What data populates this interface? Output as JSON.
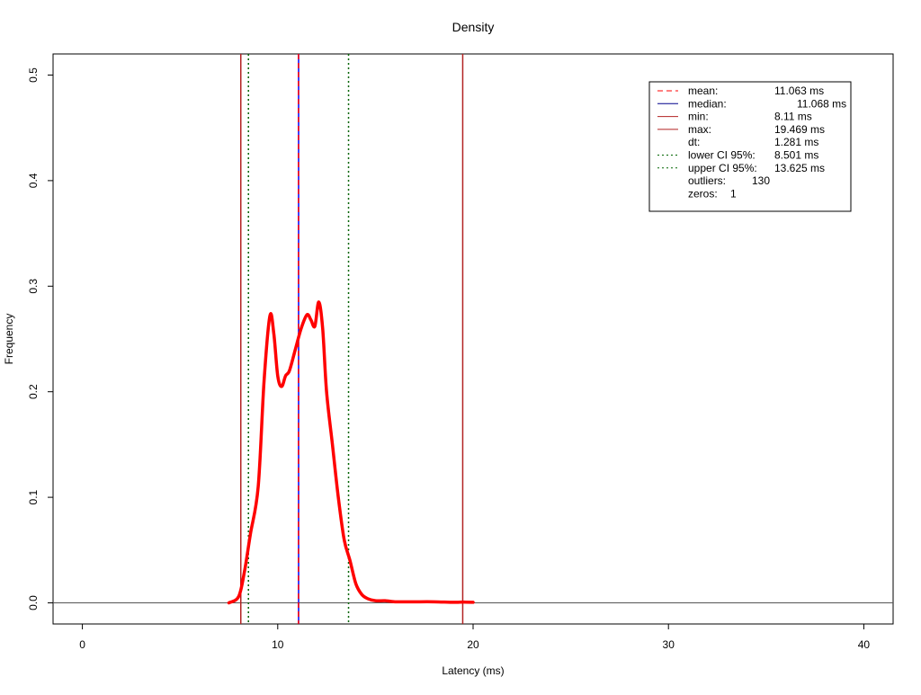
{
  "chart_data": {
    "type": "line",
    "title": "Density",
    "xlabel": "Latency (ms)",
    "ylabel": "Frequency",
    "xlim": [
      -1.5,
      41.5
    ],
    "ylim": [
      -0.02,
      0.52
    ],
    "x_ticks": [
      0,
      10,
      20,
      30,
      40
    ],
    "x_tick_labels": [
      "0",
      "10",
      "20",
      "30",
      "40"
    ],
    "y_ticks": [
      0.0,
      0.1,
      0.2,
      0.3,
      0.4,
      0.5
    ],
    "y_tick_labels": [
      "0.0",
      "0.1",
      "0.2",
      "0.3",
      "0.4",
      "0.5"
    ],
    "baseline_y": 0,
    "grid": false,
    "legend_position": "top-right",
    "density_curve": {
      "color": "#ff0000",
      "x": [
        7.5,
        8.0,
        8.3,
        8.6,
        9.0,
        9.3,
        9.6,
        9.8,
        10.0,
        10.2,
        10.4,
        10.6,
        10.9,
        11.2,
        11.5,
        11.7,
        11.9,
        12.1,
        12.3,
        12.5,
        12.8,
        13.1,
        13.4,
        13.7,
        14.0,
        14.3,
        14.6,
        15.0,
        15.5,
        16.0,
        16.5,
        17.0,
        18.0,
        19.0,
        19.5,
        20.0
      ],
      "y": [
        0.0,
        0.006,
        0.03,
        0.065,
        0.11,
        0.21,
        0.272,
        0.255,
        0.215,
        0.205,
        0.215,
        0.22,
        0.24,
        0.26,
        0.273,
        0.268,
        0.262,
        0.285,
        0.26,
        0.2,
        0.15,
        0.1,
        0.06,
        0.04,
        0.018,
        0.008,
        0.004,
        0.002,
        0.002,
        0.001,
        0.001,
        0.001,
        0.001,
        0.0005,
        0.0008,
        0.0005
      ]
    },
    "vertical_lines": [
      {
        "key": "min",
        "x": 8.11,
        "color": "#b22222",
        "style": "solid"
      },
      {
        "key": "lower_ci",
        "x": 8.501,
        "color": "#006400",
        "style": "dotted"
      },
      {
        "key": "median",
        "x": 11.068,
        "color": "#0000ff",
        "style": "solid"
      },
      {
        "key": "mean",
        "x": 11.063,
        "color": "#ff0000",
        "style": "dashed"
      },
      {
        "key": "upper_ci",
        "x": 13.625,
        "color": "#006400",
        "style": "dotted"
      },
      {
        "key": "max",
        "x": 19.469,
        "color": "#b22222",
        "style": "solid"
      }
    ],
    "legend": [
      {
        "label": "mean:",
        "value": "11.063 ms",
        "color": "#ff0000",
        "style": "dashed"
      },
      {
        "label": "median:",
        "value": "11.068 ms",
        "color": "#00008b",
        "style": "solid"
      },
      {
        "label": "min:",
        "value": "8.11 ms",
        "color": "#b22222",
        "style": "solid"
      },
      {
        "label": "max:",
        "value": "19.469 ms",
        "color": "#b22222",
        "style": "solid"
      },
      {
        "label": "dt:",
        "value": "1.281 ms",
        "color": "",
        "style": "none"
      },
      {
        "label": "lower CI 95%:",
        "value": "8.501 ms",
        "color": "#006400",
        "style": "dotted"
      },
      {
        "label": "upper CI 95%:",
        "value": "13.625 ms",
        "color": "#006400",
        "style": "dotted"
      },
      {
        "label": "outliers:",
        "value": "130",
        "color": "",
        "style": "none"
      },
      {
        "label": "zeros:",
        "value": "1",
        "color": "",
        "style": "none"
      }
    ]
  }
}
